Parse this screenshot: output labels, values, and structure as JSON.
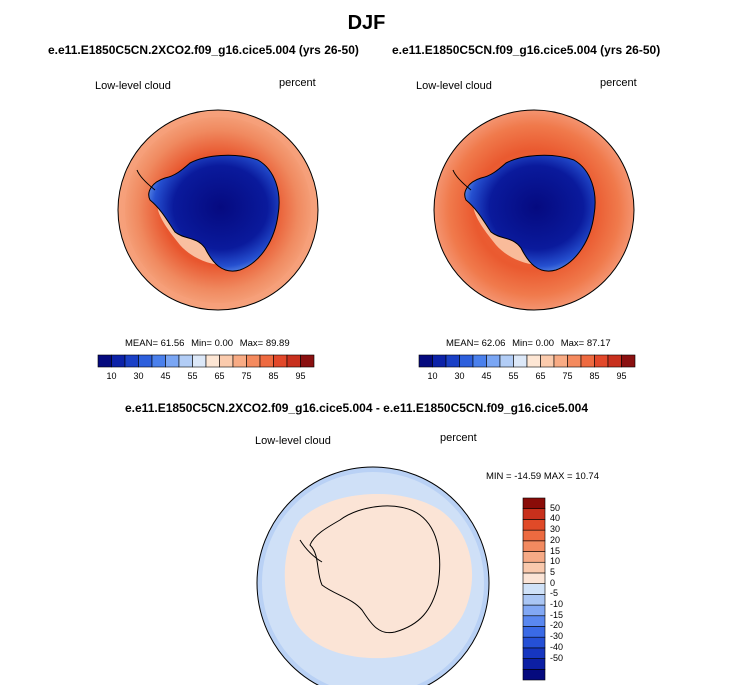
{
  "figure": {
    "title": "DJF",
    "panels": [
      {
        "title": "e.e11.E1850C5CN.2XCO2.f09_g16.cice5.004 (yrs 26-50)",
        "left_label": "Low-level cloud",
        "right_label": "percent",
        "stats": {
          "mean_label": "MEAN=",
          "mean": "61.56",
          "min_label": "Min=",
          "min": "0.00",
          "max_label": "Max=",
          "max": "89.89"
        }
      },
      {
        "title": "e.e11.E1850C5CN.f09_g16.cice5.004 (yrs 26-50)",
        "left_label": "Low-level cloud",
        "right_label": "percent",
        "stats": {
          "mean_label": "MEAN=",
          "mean": "62.06",
          "min_label": "Min=",
          "min": "0.00",
          "max_label": "Max=",
          "max": "87.17"
        }
      },
      {
        "title": "e.e11.E1850C5CN.2XCO2.f09_g16.cice5.004 - e.e11.E1850C5CN.f09_g16.cice5.004",
        "left_label": "Low-level cloud",
        "right_label": "percent",
        "minmax": "MIN = -14.59 MAX =  10.74"
      }
    ]
  },
  "colorbars": {
    "abs": {
      "colors": [
        "#050a7e",
        "#0c22a8",
        "#1a40c6",
        "#2d5fdc",
        "#4a80ec",
        "#7aa6f4",
        "#b2cdf6",
        "#dce8f8",
        "#fde6d4",
        "#fbcbad",
        "#f8ab84",
        "#f48a5e",
        "#ee6a40",
        "#e2482a",
        "#c8301e",
        "#8a1010"
      ],
      "tick_labels": [
        "10",
        "30",
        "45",
        "55",
        "65",
        "75",
        "85",
        "95"
      ]
    },
    "diff": {
      "colors": [
        "#050a7e",
        "#0c1fa4",
        "#1636c0",
        "#2550d6",
        "#3a6ae6",
        "#5a88f0",
        "#82a8f4",
        "#aac6f4",
        "#d0e2f8",
        "#fbe4d6",
        "#f9c9ad",
        "#f6aa86",
        "#f28a60",
        "#ec6a40",
        "#e04a28",
        "#c8301c",
        "#8a0c08"
      ],
      "tick_labels": [
        "50",
        "40",
        "30",
        "20",
        "15",
        "10",
        "5",
        "0",
        "-5",
        "-10",
        "-15",
        "-20",
        "-30",
        "-40",
        "-50"
      ]
    }
  },
  "chart_data": [
    {
      "type": "heatmap",
      "title": "e.e11.E1850C5CN.2XCO2.f09_g16.cice5.004 (yrs 26-50)",
      "variable": "Low-level cloud",
      "units": "percent",
      "levels": [
        10,
        15,
        20,
        25,
        30,
        35,
        40,
        45,
        50,
        55,
        60,
        65,
        70,
        75,
        80,
        85,
        90,
        95
      ],
      "mean": 61.56,
      "min": 0.0,
      "max": 89.89
    },
    {
      "type": "heatmap",
      "title": "e.e11.E1850C5CN.f09_g16.cice5.004 (yrs 26-50)",
      "variable": "Low-level cloud",
      "units": "percent",
      "levels": [
        10,
        15,
        20,
        25,
        30,
        35,
        40,
        45,
        50,
        55,
        60,
        65,
        70,
        75,
        80,
        85,
        90,
        95
      ],
      "mean": 62.06,
      "min": 0.0,
      "max": 87.17
    },
    {
      "type": "heatmap",
      "title": "e.e11.E1850C5CN.2XCO2.f09_g16.cice5.004 - e.e11.E1850C5CN.f09_g16.cice5.004",
      "variable": "Low-level cloud",
      "units": "percent",
      "levels": [
        -50,
        -40,
        -30,
        -20,
        -15,
        -10,
        -5,
        0,
        5,
        10,
        15,
        20,
        30,
        40,
        50
      ],
      "min": -14.59,
      "max": 10.74
    }
  ]
}
